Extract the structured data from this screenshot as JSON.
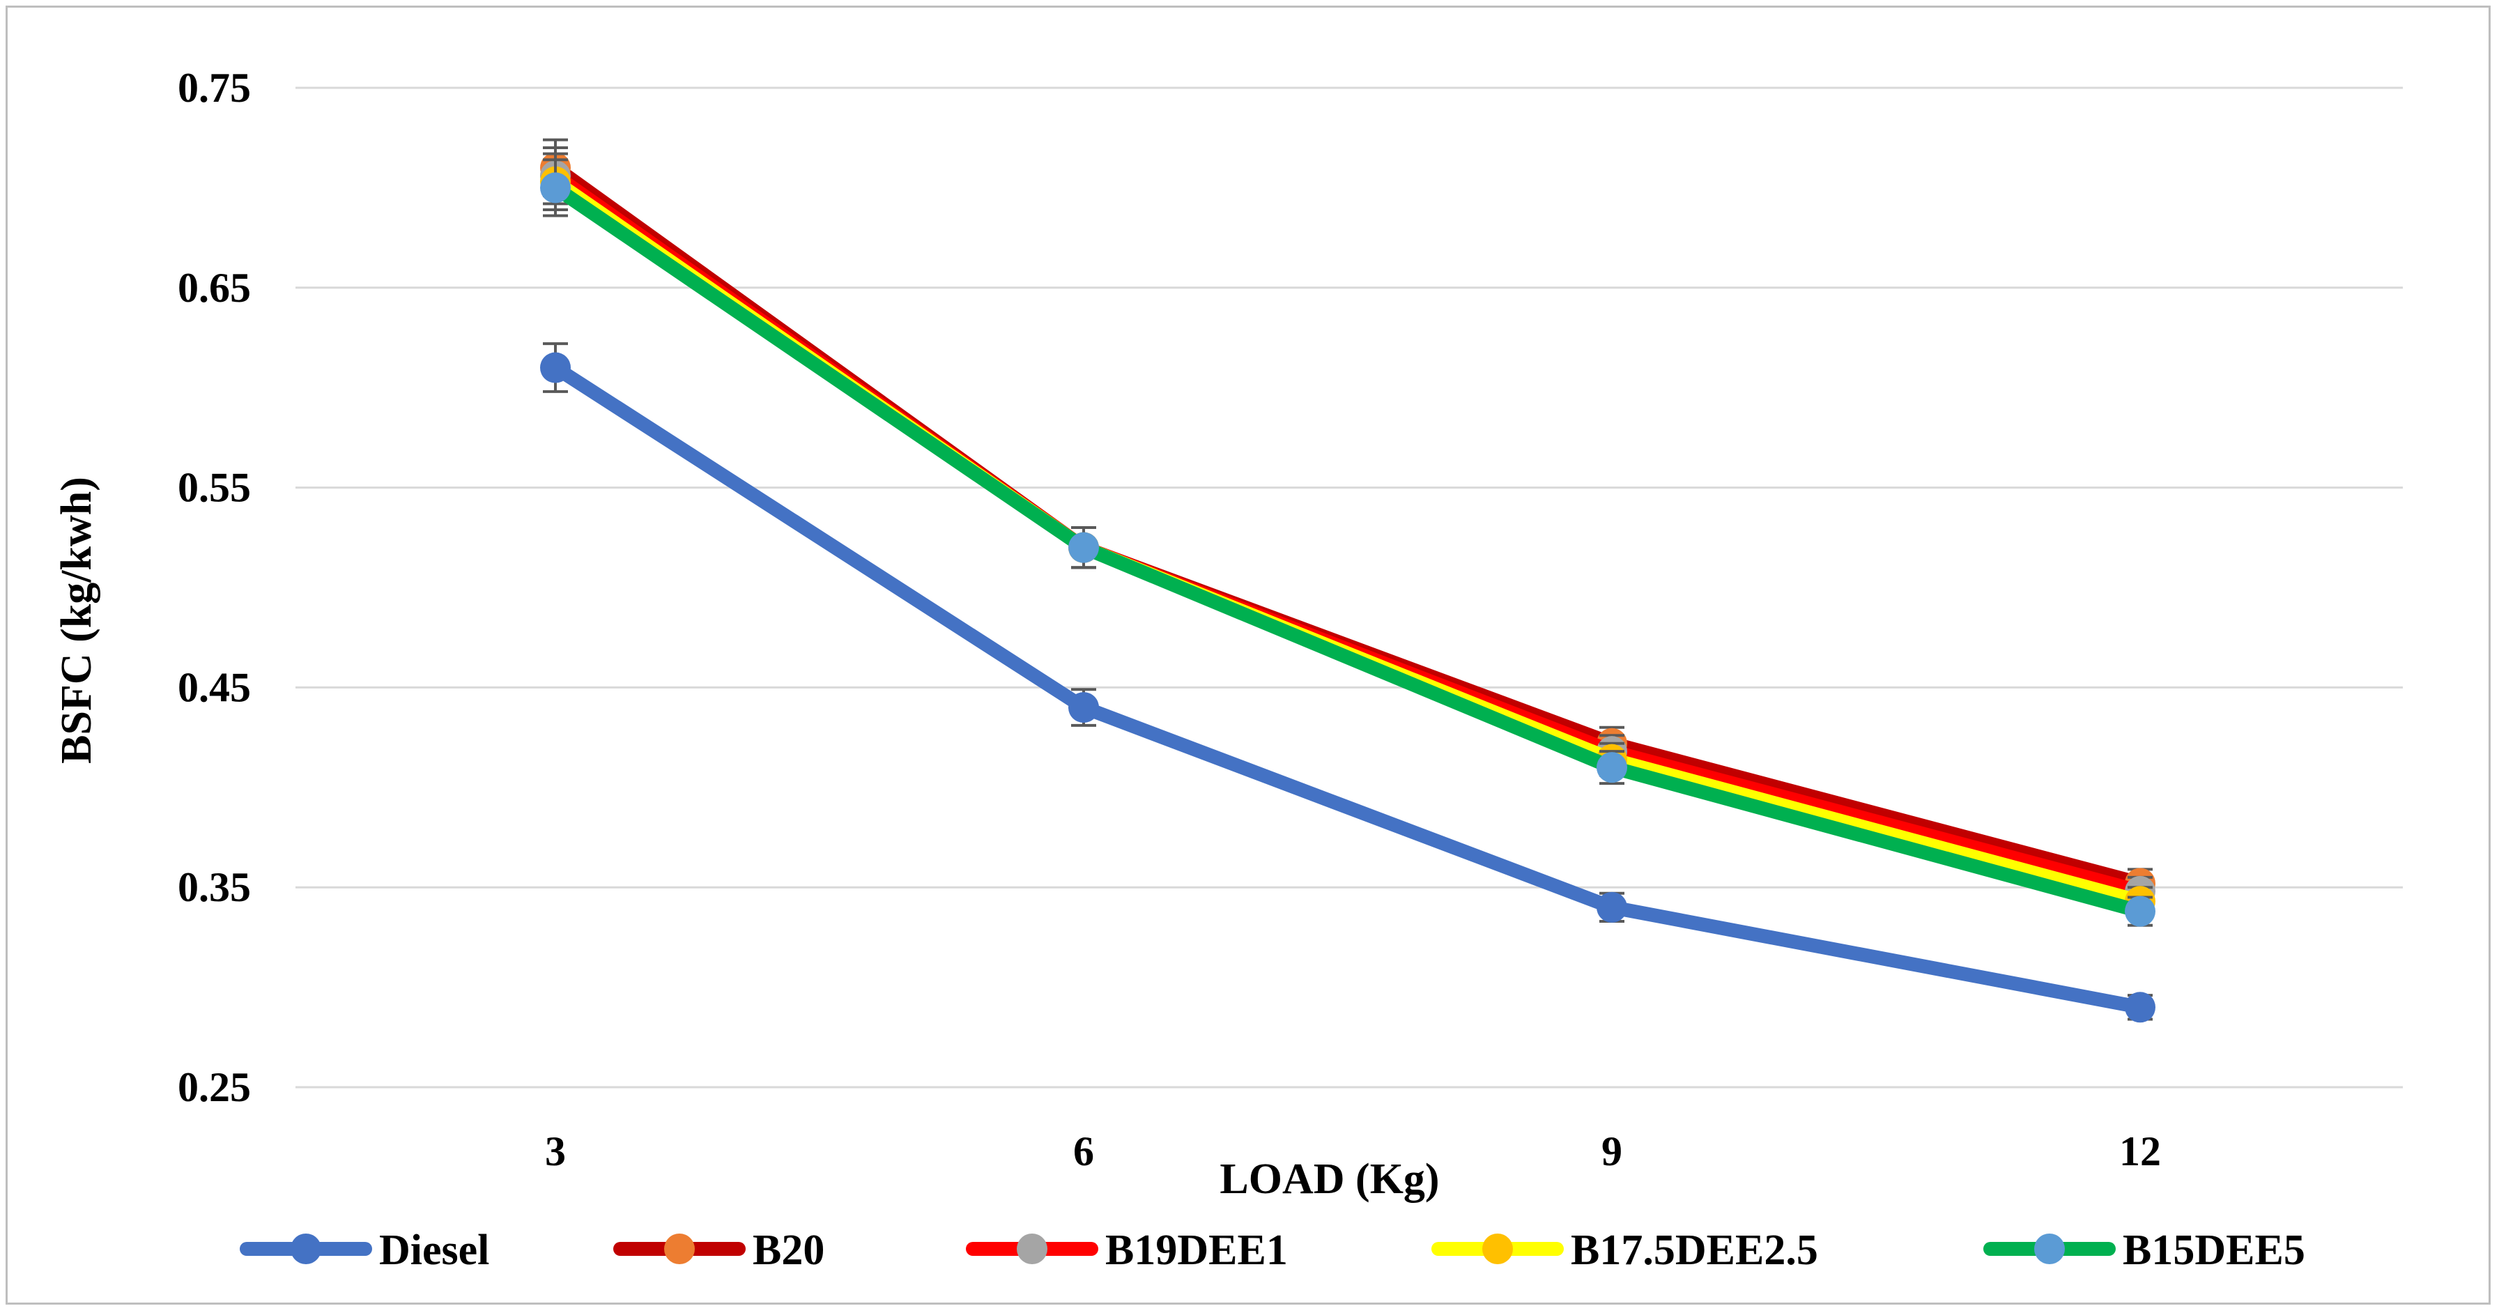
{
  "chart_data": {
    "type": "line",
    "title": "",
    "xlabel": "LOAD (Kg)",
    "ylabel": "BSFC (kg/kwh)",
    "x": [
      3,
      6,
      9,
      12
    ],
    "x_tick_labels": [
      "3",
      "6",
      "9",
      "12"
    ],
    "ylim": [
      0.25,
      0.75
    ],
    "y_ticks": [
      0.25,
      0.35,
      0.45,
      0.55,
      0.65,
      0.75
    ],
    "y_tick_labels": [
      "0.25",
      "0.35",
      "0.45",
      "0.55",
      "0.65",
      "0.75"
    ],
    "grid": "horizontal",
    "legend_position": "bottom",
    "error_bars": true,
    "series": [
      {
        "name": "Diesel",
        "values": [
          0.61,
          0.44,
          0.34,
          0.29
        ],
        "errors": [
          0.012,
          0.009,
          0.007,
          0.006
        ],
        "line_color": "#4472c4",
        "marker_color": "#4472c4"
      },
      {
        "name": "B20",
        "values": [
          0.71,
          0.52,
          0.422,
          0.352
        ],
        "errors": [
          0.014,
          0.01,
          0.008,
          0.007
        ],
        "line_color": "#c00000",
        "marker_color": "#ed7d31"
      },
      {
        "name": "B19DEE1",
        "values": [
          0.706,
          0.52,
          0.418,
          0.348
        ],
        "errors": [
          0.014,
          0.01,
          0.008,
          0.007
        ],
        "line_color": "#ff0000",
        "marker_color": "#a5a5a5"
      },
      {
        "name": "B17.5DEE2.5",
        "values": [
          0.703,
          0.52,
          0.414,
          0.343
        ],
        "errors": [
          0.014,
          0.01,
          0.008,
          0.007
        ],
        "line_color": "#ffff00",
        "marker_color": "#ffc000"
      },
      {
        "name": "B15DEE5",
        "values": [
          0.7,
          0.52,
          0.41,
          0.338
        ],
        "errors": [
          0.014,
          0.01,
          0.008,
          0.007
        ],
        "line_color": "#00b050",
        "marker_color": "#5b9bd5"
      }
    ]
  }
}
